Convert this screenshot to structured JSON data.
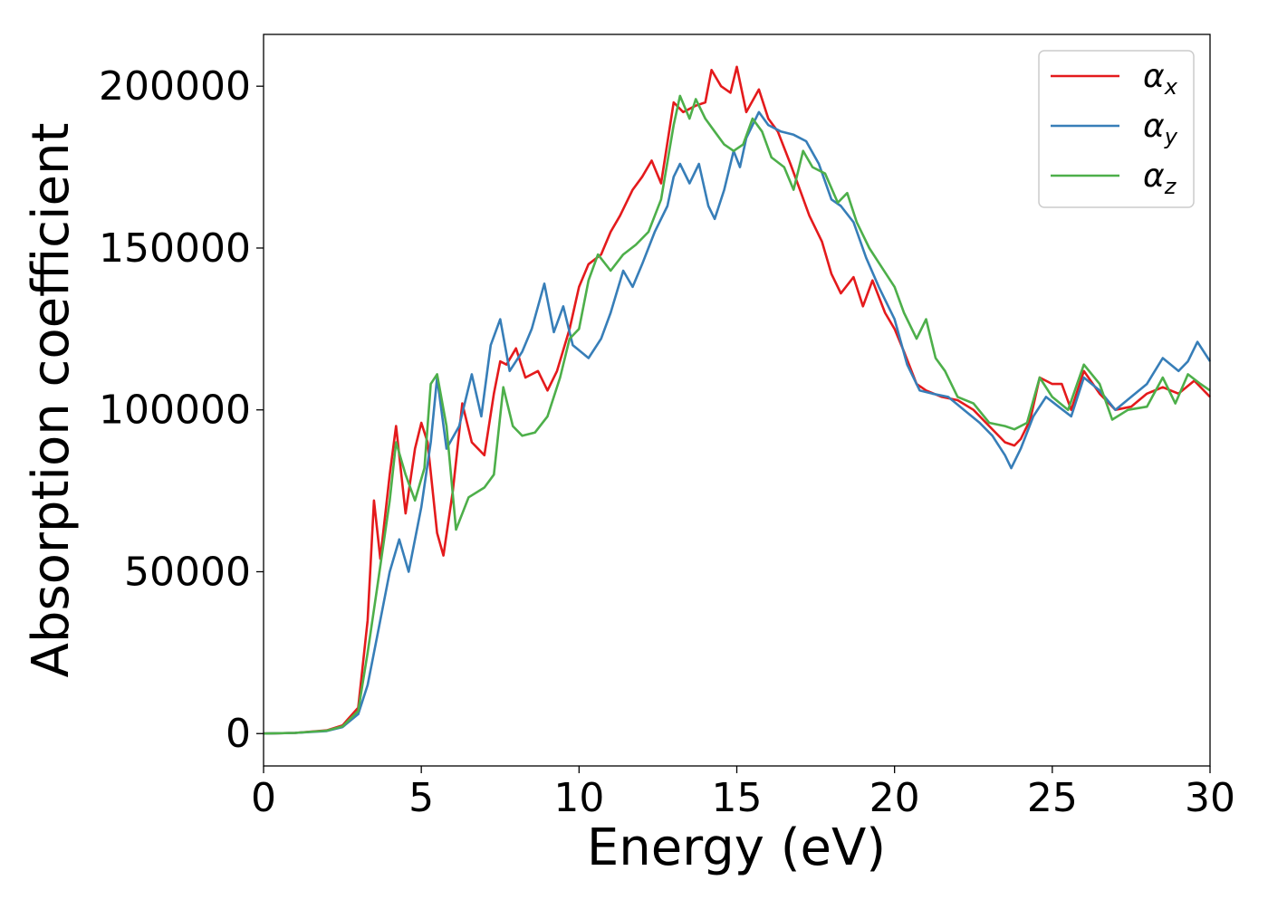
{
  "chart_data": {
    "type": "line",
    "xlabel": "Energy (eV)",
    "ylabel": "Absorption coefficient",
    "xlim": [
      0,
      30
    ],
    "ylim": [
      -10000,
      216000
    ],
    "x_ticks": [
      0,
      5,
      10,
      15,
      20,
      25,
      30
    ],
    "y_ticks": [
      0,
      50000,
      100000,
      150000,
      200000
    ],
    "grid": false,
    "legend_position": "top-right",
    "series": [
      {
        "name": "αx",
        "symbol": "α",
        "subscript": "x",
        "color": "#e41a1c",
        "points": [
          [
            0,
            0
          ],
          [
            1,
            200
          ],
          [
            2,
            1000
          ],
          [
            2.5,
            2500
          ],
          [
            3,
            8000
          ],
          [
            3.3,
            35000
          ],
          [
            3.5,
            72000
          ],
          [
            3.7,
            54000
          ],
          [
            4,
            80000
          ],
          [
            4.2,
            95000
          ],
          [
            4.5,
            68000
          ],
          [
            4.8,
            88000
          ],
          [
            5,
            96000
          ],
          [
            5.2,
            90000
          ],
          [
            5.5,
            62000
          ],
          [
            5.7,
            55000
          ],
          [
            6,
            75000
          ],
          [
            6.3,
            102000
          ],
          [
            6.6,
            90000
          ],
          [
            7,
            86000
          ],
          [
            7.3,
            105000
          ],
          [
            7.5,
            115000
          ],
          [
            7.7,
            114000
          ],
          [
            8,
            119000
          ],
          [
            8.3,
            110000
          ],
          [
            8.7,
            112000
          ],
          [
            9,
            106000
          ],
          [
            9.3,
            112000
          ],
          [
            9.7,
            125000
          ],
          [
            10,
            138000
          ],
          [
            10.3,
            145000
          ],
          [
            10.7,
            148000
          ],
          [
            11,
            155000
          ],
          [
            11.3,
            160000
          ],
          [
            11.7,
            168000
          ],
          [
            12,
            172000
          ],
          [
            12.3,
            177000
          ],
          [
            12.6,
            170000
          ],
          [
            13,
            195000
          ],
          [
            13.3,
            192000
          ],
          [
            13.7,
            194000
          ],
          [
            14,
            195000
          ],
          [
            14.2,
            205000
          ],
          [
            14.5,
            200000
          ],
          [
            14.8,
            198000
          ],
          [
            15,
            206000
          ],
          [
            15.3,
            192000
          ],
          [
            15.7,
            199000
          ],
          [
            16,
            190000
          ],
          [
            16.3,
            186000
          ],
          [
            16.7,
            176000
          ],
          [
            17,
            168000
          ],
          [
            17.3,
            160000
          ],
          [
            17.7,
            152000
          ],
          [
            18,
            142000
          ],
          [
            18.3,
            136000
          ],
          [
            18.7,
            141000
          ],
          [
            19,
            132000
          ],
          [
            19.3,
            140000
          ],
          [
            19.7,
            130000
          ],
          [
            20,
            125000
          ],
          [
            20.3,
            118000
          ],
          [
            20.7,
            108000
          ],
          [
            21,
            106000
          ],
          [
            21.5,
            104000
          ],
          [
            22,
            103000
          ],
          [
            22.5,
            100000
          ],
          [
            23,
            95000
          ],
          [
            23.5,
            90000
          ],
          [
            23.8,
            89000
          ],
          [
            24,
            91000
          ],
          [
            24.3,
            97000
          ],
          [
            24.6,
            110000
          ],
          [
            25,
            108000
          ],
          [
            25.3,
            108000
          ],
          [
            25.6,
            100000
          ],
          [
            26,
            112000
          ],
          [
            26.5,
            105000
          ],
          [
            27,
            100000
          ],
          [
            27.5,
            101000
          ],
          [
            28,
            105000
          ],
          [
            28.5,
            107000
          ],
          [
            29,
            105000
          ],
          [
            29.5,
            109000
          ],
          [
            30,
            104000
          ]
        ]
      },
      {
        "name": "αy",
        "symbol": "α",
        "subscript": "y",
        "color": "#377eb8",
        "points": [
          [
            0,
            0
          ],
          [
            1,
            200
          ],
          [
            2,
            800
          ],
          [
            2.5,
            2000
          ],
          [
            3,
            6000
          ],
          [
            3.3,
            15000
          ],
          [
            3.6,
            30000
          ],
          [
            4,
            50000
          ],
          [
            4.3,
            60000
          ],
          [
            4.6,
            50000
          ],
          [
            5,
            70000
          ],
          [
            5.3,
            90000
          ],
          [
            5.5,
            110000
          ],
          [
            5.8,
            88000
          ],
          [
            6.2,
            95000
          ],
          [
            6.6,
            111000
          ],
          [
            6.9,
            98000
          ],
          [
            7.2,
            120000
          ],
          [
            7.5,
            128000
          ],
          [
            7.8,
            112000
          ],
          [
            8.2,
            118000
          ],
          [
            8.5,
            125000
          ],
          [
            8.9,
            139000
          ],
          [
            9.2,
            124000
          ],
          [
            9.5,
            132000
          ],
          [
            9.8,
            120000
          ],
          [
            10.3,
            116000
          ],
          [
            10.7,
            122000
          ],
          [
            11,
            130000
          ],
          [
            11.4,
            143000
          ],
          [
            11.7,
            138000
          ],
          [
            12,
            145000
          ],
          [
            12.4,
            155000
          ],
          [
            12.8,
            163000
          ],
          [
            13,
            172000
          ],
          [
            13.2,
            176000
          ],
          [
            13.5,
            170000
          ],
          [
            13.8,
            176000
          ],
          [
            14.1,
            163000
          ],
          [
            14.3,
            159000
          ],
          [
            14.6,
            168000
          ],
          [
            14.9,
            180000
          ],
          [
            15.1,
            175000
          ],
          [
            15.3,
            184000
          ],
          [
            15.7,
            192000
          ],
          [
            16,
            188000
          ],
          [
            16.4,
            186000
          ],
          [
            16.8,
            185000
          ],
          [
            17.2,
            183000
          ],
          [
            17.6,
            176000
          ],
          [
            18,
            165000
          ],
          [
            18.3,
            163000
          ],
          [
            18.7,
            158000
          ],
          [
            19.1,
            147000
          ],
          [
            19.5,
            138000
          ],
          [
            20,
            128000
          ],
          [
            20.4,
            114000
          ],
          [
            20.8,
            106000
          ],
          [
            21.2,
            105000
          ],
          [
            21.7,
            104000
          ],
          [
            22.2,
            100000
          ],
          [
            22.7,
            96000
          ],
          [
            23.1,
            92000
          ],
          [
            23.5,
            86000
          ],
          [
            23.7,
            82000
          ],
          [
            24,
            88000
          ],
          [
            24.4,
            98000
          ],
          [
            24.8,
            104000
          ],
          [
            25.2,
            101000
          ],
          [
            25.6,
            98000
          ],
          [
            26,
            110000
          ],
          [
            26.5,
            106000
          ],
          [
            27,
            100000
          ],
          [
            27.5,
            104000
          ],
          [
            28,
            108000
          ],
          [
            28.5,
            116000
          ],
          [
            29,
            112000
          ],
          [
            29.3,
            115000
          ],
          [
            29.6,
            121000
          ],
          [
            30,
            115000
          ]
        ]
      },
      {
        "name": "αz",
        "symbol": "α",
        "subscript": "z",
        "color": "#4daf4a",
        "points": [
          [
            0,
            0
          ],
          [
            1,
            200
          ],
          [
            2,
            900
          ],
          [
            2.5,
            2200
          ],
          [
            3,
            7000
          ],
          [
            3.3,
            25000
          ],
          [
            3.6,
            45000
          ],
          [
            4,
            72000
          ],
          [
            4.2,
            90000
          ],
          [
            4.5,
            80000
          ],
          [
            4.8,
            72000
          ],
          [
            5.1,
            82000
          ],
          [
            5.3,
            108000
          ],
          [
            5.5,
            111000
          ],
          [
            5.8,
            95000
          ],
          [
            6.1,
            63000
          ],
          [
            6.5,
            73000
          ],
          [
            7,
            76000
          ],
          [
            7.3,
            80000
          ],
          [
            7.6,
            107000
          ],
          [
            7.9,
            95000
          ],
          [
            8.2,
            92000
          ],
          [
            8.6,
            93000
          ],
          [
            9,
            98000
          ],
          [
            9.4,
            110000
          ],
          [
            9.7,
            122000
          ],
          [
            10,
            125000
          ],
          [
            10.3,
            140000
          ],
          [
            10.6,
            148000
          ],
          [
            11,
            143000
          ],
          [
            11.4,
            148000
          ],
          [
            11.8,
            151000
          ],
          [
            12.2,
            155000
          ],
          [
            12.6,
            165000
          ],
          [
            13,
            188000
          ],
          [
            13.2,
            197000
          ],
          [
            13.5,
            190000
          ],
          [
            13.7,
            196000
          ],
          [
            14,
            190000
          ],
          [
            14.3,
            186000
          ],
          [
            14.6,
            182000
          ],
          [
            14.9,
            180000
          ],
          [
            15.2,
            182000
          ],
          [
            15.5,
            190000
          ],
          [
            15.8,
            186000
          ],
          [
            16.1,
            178000
          ],
          [
            16.5,
            175000
          ],
          [
            16.8,
            168000
          ],
          [
            17.1,
            180000
          ],
          [
            17.4,
            175000
          ],
          [
            17.8,
            173000
          ],
          [
            18.2,
            164000
          ],
          [
            18.5,
            167000
          ],
          [
            18.8,
            158000
          ],
          [
            19.2,
            150000
          ],
          [
            19.6,
            144000
          ],
          [
            20,
            138000
          ],
          [
            20.3,
            130000
          ],
          [
            20.7,
            122000
          ],
          [
            21,
            128000
          ],
          [
            21.3,
            116000
          ],
          [
            21.6,
            112000
          ],
          [
            22,
            104000
          ],
          [
            22.5,
            102000
          ],
          [
            23,
            96000
          ],
          [
            23.5,
            95000
          ],
          [
            23.8,
            94000
          ],
          [
            24.2,
            96000
          ],
          [
            24.6,
            110000
          ],
          [
            25,
            104000
          ],
          [
            25.5,
            100000
          ],
          [
            26,
            114000
          ],
          [
            26.5,
            108000
          ],
          [
            26.9,
            97000
          ],
          [
            27.4,
            100000
          ],
          [
            28,
            101000
          ],
          [
            28.5,
            110000
          ],
          [
            28.9,
            102000
          ],
          [
            29.3,
            111000
          ],
          [
            29.7,
            108000
          ],
          [
            30,
            106000
          ]
        ]
      }
    ]
  }
}
